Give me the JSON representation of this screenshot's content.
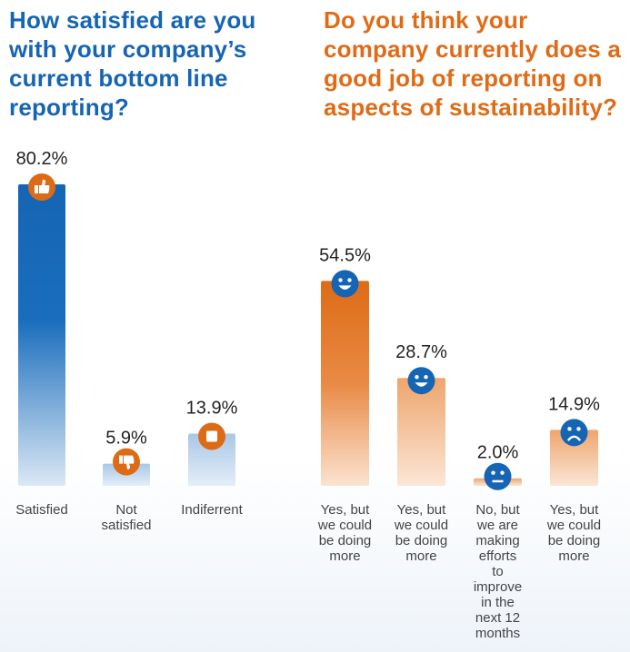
{
  "chart_data": [
    {
      "type": "bar",
      "title": "How satisfied are you with your company’s current bottom line reporting?",
      "categories": [
        "Satisfied",
        "Not satisfied",
        "Indiferrent"
      ],
      "values": [
        80.2,
        5.9,
        13.9
      ],
      "value_labels": [
        "80.2%",
        "5.9%",
        "13.9%"
      ],
      "icons": [
        "thumbs-up-icon",
        "thumbs-down-icon",
        "stop-square-icon"
      ],
      "bar_color": "#1565b4",
      "icon_color": "#dd6b16"
    },
    {
      "type": "bar",
      "title": "Do you think your company currently does a good job of reporting on aspects of sustainability?",
      "categories": [
        "Yes, but we could be doing more",
        "Yes, but we could be doing more",
        "No, but we are making efforts to improve in the next 12 months",
        "Yes, but we could be doing more"
      ],
      "values": [
        54.5,
        28.7,
        2.0,
        14.9
      ],
      "value_labels": [
        "54.5%",
        "28.7%",
        "2.0%",
        "14.9%"
      ],
      "icons": [
        "happy-face-icon",
        "happy-face-icon",
        "neutral-face-icon",
        "sad-face-icon"
      ],
      "bar_color": "#e06b17",
      "icon_color": "#1565b4"
    }
  ]
}
